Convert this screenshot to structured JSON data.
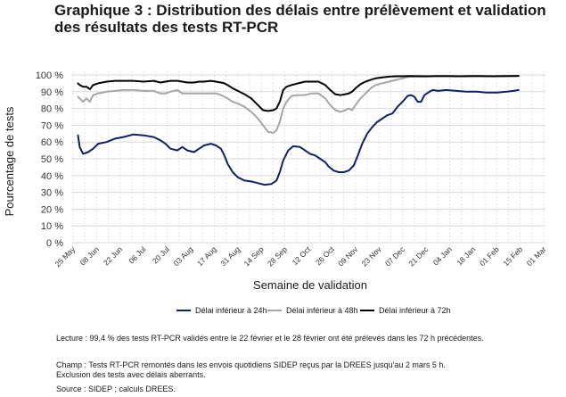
{
  "title_line1": "Graphique 3 : Distribution des délais entre prélèvement et validation",
  "title_line2": "des résultats des tests RT-PCR",
  "chart_data": {
    "type": "line",
    "xlabel": "Semaine de validation",
    "ylabel": "Pourcentage de tests",
    "ylim": [
      0,
      100
    ],
    "y_ticks": [
      "0 %",
      "10 %",
      "20 %",
      "30 %",
      "40 %",
      "50 %",
      "60 %",
      "70 %",
      "80 %",
      "90 %",
      "100 %"
    ],
    "x_ticks": [
      "25 May",
      "08 Jun",
      "22 Jun",
      "06 Jul",
      "20 Jul",
      "03 Aug",
      "17 Aug",
      "31 Aug",
      "14 Sep",
      "28 Sep",
      "12 Oct",
      "26 Oct",
      "09 Nov",
      "23 Nov",
      "07 Dec",
      "21 Dec",
      "04 Jan",
      "18 Jan",
      "01 Feb",
      "15 Feb",
      "01 Mar"
    ],
    "x_domain": [
      -1,
      281
    ],
    "grid": true,
    "legend_position": "bottom",
    "series": [
      {
        "name": "Délai inférieur à 24h",
        "color": "#0f1f6b",
        "points": [
          [
            3,
            64
          ],
          [
            4,
            57
          ],
          [
            6,
            53
          ],
          [
            9,
            54
          ],
          [
            12,
            56
          ],
          [
            15,
            59
          ],
          [
            20,
            60
          ],
          [
            25,
            62
          ],
          [
            30,
            63
          ],
          [
            36,
            64.5
          ],
          [
            42,
            64
          ],
          [
            48,
            63
          ],
          [
            52,
            61
          ],
          [
            55,
            59
          ],
          [
            58,
            56
          ],
          [
            62,
            55
          ],
          [
            65,
            57
          ],
          [
            68,
            55
          ],
          [
            72,
            54
          ],
          [
            75,
            56
          ],
          [
            78,
            58
          ],
          [
            82,
            59
          ],
          [
            85,
            58
          ],
          [
            88,
            56
          ],
          [
            90,
            52
          ],
          [
            92,
            47
          ],
          [
            95,
            42
          ],
          [
            98,
            39
          ],
          [
            102,
            37
          ],
          [
            106,
            36.5
          ],
          [
            110,
            35.5
          ],
          [
            114,
            34.5
          ],
          [
            118,
            35
          ],
          [
            121,
            37
          ],
          [
            123,
            42
          ],
          [
            125,
            49
          ],
          [
            128,
            55
          ],
          [
            131,
            57.5
          ],
          [
            135,
            57
          ],
          [
            138,
            55
          ],
          [
            141,
            53
          ],
          [
            144,
            52
          ],
          [
            147,
            50
          ],
          [
            150,
            48
          ],
          [
            152,
            45.5
          ],
          [
            155,
            43
          ],
          [
            158,
            42
          ],
          [
            161,
            42
          ],
          [
            164,
            43
          ],
          [
            167,
            46
          ],
          [
            169,
            51
          ],
          [
            172,
            59
          ],
          [
            175,
            65
          ],
          [
            178,
            69
          ],
          [
            181,
            72
          ],
          [
            184,
            74
          ],
          [
            187,
            76
          ],
          [
            190,
            77
          ],
          [
            193,
            81
          ],
          [
            196,
            84
          ],
          [
            199,
            87.5
          ],
          [
            201,
            88
          ],
          [
            203,
            87
          ],
          [
            205,
            84
          ],
          [
            207,
            84
          ],
          [
            209,
            88
          ],
          [
            212,
            90
          ],
          [
            214,
            91
          ],
          [
            217,
            90.5
          ],
          [
            222,
            91
          ],
          [
            228,
            90.5
          ],
          [
            234,
            90
          ],
          [
            240,
            90
          ],
          [
            246,
            89.5
          ],
          [
            252,
            89.5
          ],
          [
            258,
            90
          ],
          [
            262,
            90.5
          ],
          [
            265,
            91
          ]
        ]
      },
      {
        "name": "Délai inférieur à 48h",
        "color": "#a6a6a6",
        "points": [
          [
            3,
            87
          ],
          [
            4,
            86
          ],
          [
            6,
            84
          ],
          [
            8,
            86
          ],
          [
            10,
            84
          ],
          [
            12,
            88
          ],
          [
            15,
            89
          ],
          [
            20,
            90
          ],
          [
            25,
            90.5
          ],
          [
            30,
            91
          ],
          [
            36,
            91
          ],
          [
            42,
            90.5
          ],
          [
            48,
            90.5
          ],
          [
            52,
            89
          ],
          [
            55,
            89
          ],
          [
            58,
            90
          ],
          [
            62,
            91
          ],
          [
            65,
            89
          ],
          [
            68,
            89
          ],
          [
            72,
            89
          ],
          [
            75,
            89
          ],
          [
            78,
            89
          ],
          [
            82,
            89
          ],
          [
            85,
            89
          ],
          [
            88,
            88
          ],
          [
            90,
            87
          ],
          [
            92,
            86
          ],
          [
            95,
            84
          ],
          [
            98,
            83
          ],
          [
            102,
            81
          ],
          [
            106,
            78
          ],
          [
            110,
            74
          ],
          [
            113,
            70
          ],
          [
            116,
            66
          ],
          [
            119,
            65.5
          ],
          [
            121,
            67
          ],
          [
            123,
            72
          ],
          [
            125,
            80
          ],
          [
            127,
            84
          ],
          [
            130,
            87.5
          ],
          [
            134,
            88
          ],
          [
            138,
            88
          ],
          [
            142,
            89
          ],
          [
            146,
            89
          ],
          [
            150,
            86
          ],
          [
            153,
            82
          ],
          [
            156,
            79
          ],
          [
            159,
            78
          ],
          [
            162,
            79
          ],
          [
            164,
            80
          ],
          [
            166,
            79
          ],
          [
            168,
            82
          ],
          [
            171,
            86
          ],
          [
            174,
            89
          ],
          [
            177,
            92
          ],
          [
            180,
            94
          ],
          [
            184,
            95
          ],
          [
            188,
            96
          ],
          [
            192,
            97
          ],
          [
            196,
            98
          ],
          [
            200,
            99
          ],
          [
            204,
            99
          ],
          [
            210,
            99
          ],
          [
            215,
            99.3
          ],
          [
            220,
            99.2
          ],
          [
            228,
            99.2
          ],
          [
            236,
            99.3
          ],
          [
            244,
            99.2
          ],
          [
            252,
            99.3
          ],
          [
            258,
            99.2
          ],
          [
            265,
            99.3
          ]
        ]
      },
      {
        "name": "Délai inférieur à 72h",
        "color": "#000000",
        "points": [
          [
            3,
            95
          ],
          [
            4,
            94
          ],
          [
            6,
            93
          ],
          [
            8,
            93
          ],
          [
            10,
            91.5
          ],
          [
            12,
            94
          ],
          [
            15,
            95
          ],
          [
            20,
            96
          ],
          [
            25,
            96.5
          ],
          [
            30,
            96.5
          ],
          [
            36,
            96.5
          ],
          [
            42,
            96
          ],
          [
            48,
            96.5
          ],
          [
            52,
            95.5
          ],
          [
            55,
            96
          ],
          [
            58,
            96.5
          ],
          [
            62,
            96.5
          ],
          [
            65,
            96
          ],
          [
            68,
            95.5
          ],
          [
            72,
            95.5
          ],
          [
            75,
            96
          ],
          [
            78,
            96
          ],
          [
            82,
            96.5
          ],
          [
            85,
            96
          ],
          [
            88,
            95.5
          ],
          [
            90,
            95
          ],
          [
            92,
            94
          ],
          [
            95,
            92
          ],
          [
            98,
            90.5
          ],
          [
            102,
            88.5
          ],
          [
            106,
            86
          ],
          [
            110,
            82
          ],
          [
            113,
            79
          ],
          [
            116,
            78.5
          ],
          [
            119,
            79
          ],
          [
            121,
            80
          ],
          [
            123,
            84
          ],
          [
            125,
            91
          ],
          [
            127,
            93
          ],
          [
            130,
            94
          ],
          [
            134,
            95
          ],
          [
            138,
            96
          ],
          [
            142,
            96
          ],
          [
            146,
            96
          ],
          [
            150,
            94
          ],
          [
            153,
            91
          ],
          [
            156,
            88.5
          ],
          [
            159,
            88
          ],
          [
            162,
            88.5
          ],
          [
            164,
            89
          ],
          [
            166,
            90
          ],
          [
            168,
            92
          ],
          [
            171,
            94.5
          ],
          [
            174,
            96
          ],
          [
            177,
            97
          ],
          [
            180,
            98
          ],
          [
            184,
            98.5
          ],
          [
            188,
            99
          ],
          [
            192,
            99.2
          ],
          [
            196,
            99.2
          ],
          [
            200,
            99.3
          ],
          [
            210,
            99.2
          ],
          [
            220,
            99.3
          ],
          [
            230,
            99.2
          ],
          [
            240,
            99.3
          ],
          [
            250,
            99.2
          ],
          [
            258,
            99.3
          ],
          [
            265,
            99.4
          ]
        ]
      }
    ]
  },
  "notes": {
    "lecture": "Lecture : 99,4 % des tests RT-PCR validés entre le 22 février et le 28 février ont été prélevés dans les 72 h précédentes.",
    "champ1": "Champ : Tests RT-PCR remontés dans les envois quotidiens SIDEP reçus par la DREES jusqu'au 2 mars 5 h.",
    "champ2": "Exclusion des tests avec délais aberrants.",
    "source": "Source : SIDEP ; calculs DREES."
  }
}
